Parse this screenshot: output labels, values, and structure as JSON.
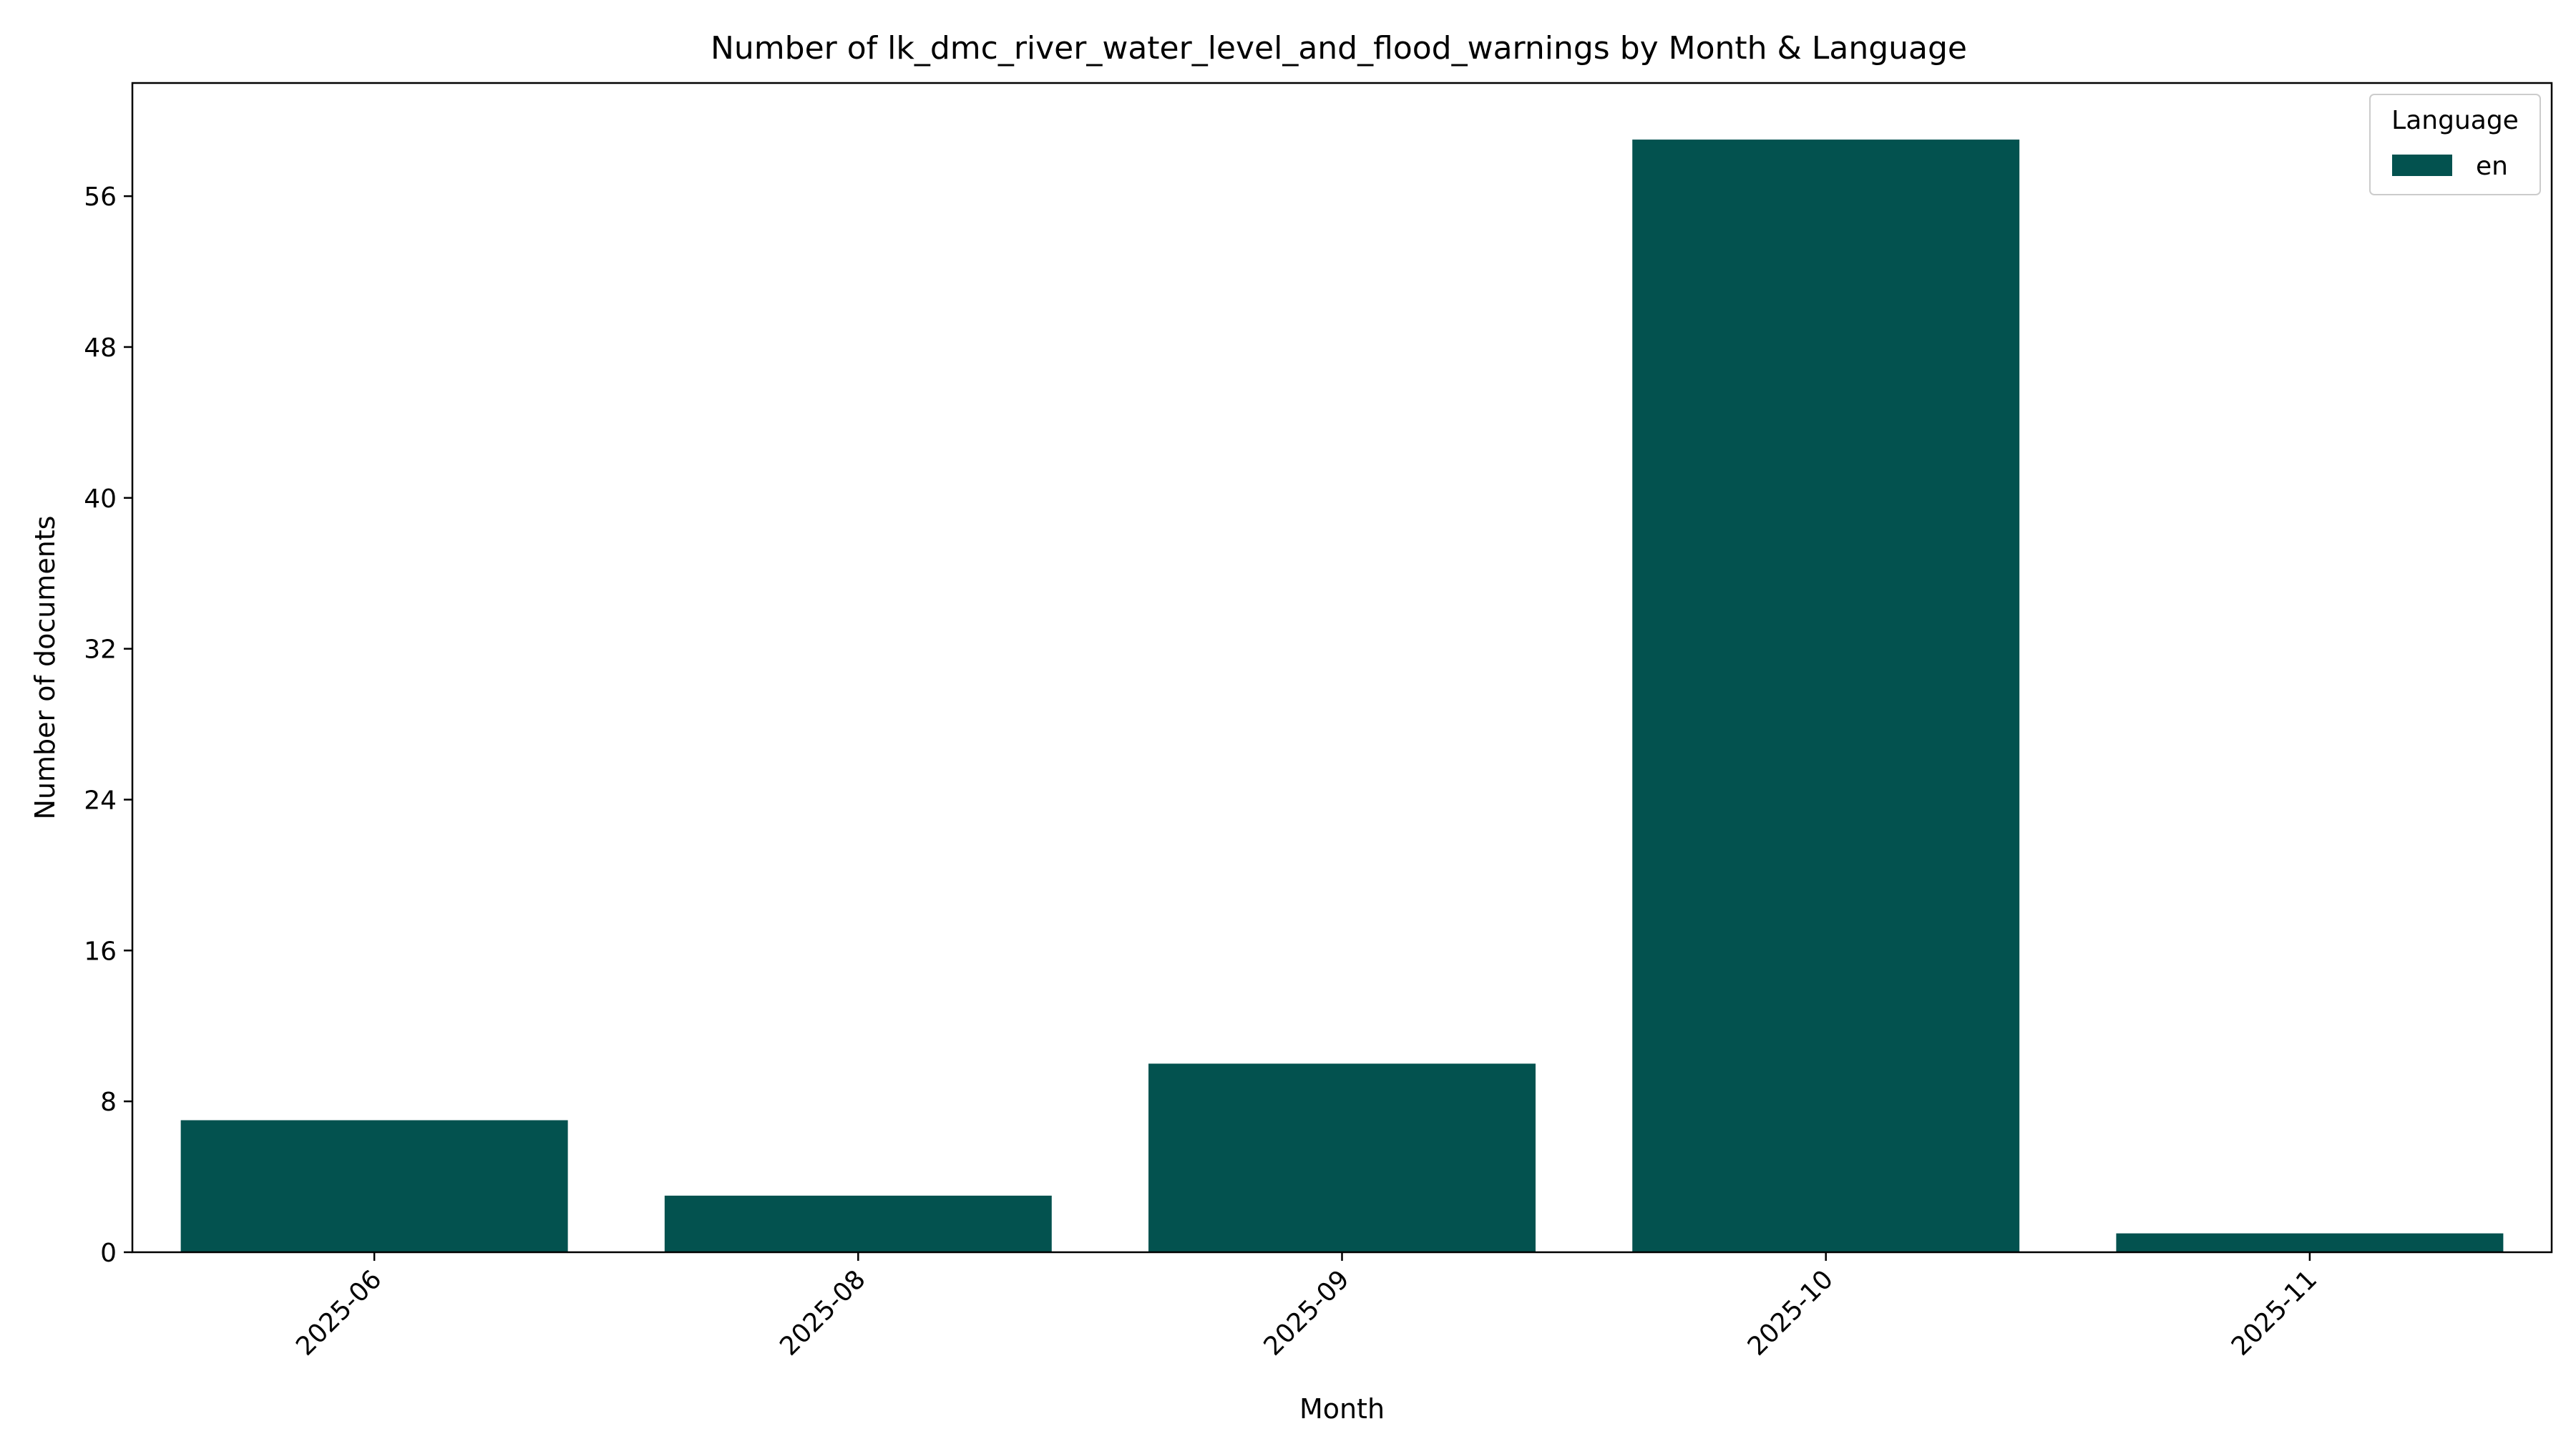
{
  "chart_data": {
    "type": "bar",
    "title": "Number of lk_dmc_river_water_level_and_flood_warnings by Month & Language",
    "xlabel": "Month",
    "ylabel": "Number of documents",
    "categories": [
      "2025-06",
      "2025-08",
      "2025-09",
      "2025-10",
      "2025-11"
    ],
    "series": [
      {
        "name": "en",
        "values": [
          7,
          3,
          10,
          59,
          1
        ],
        "color": "#03524f"
      }
    ],
    "ylim": [
      0,
      62
    ],
    "yticks": [
      "0",
      "8",
      "16",
      "24",
      "32",
      "40",
      "48",
      "56"
    ],
    "grid": false,
    "legend": {
      "title": "Language",
      "placement": "top-right"
    },
    "xtick_rotation": "45"
  }
}
